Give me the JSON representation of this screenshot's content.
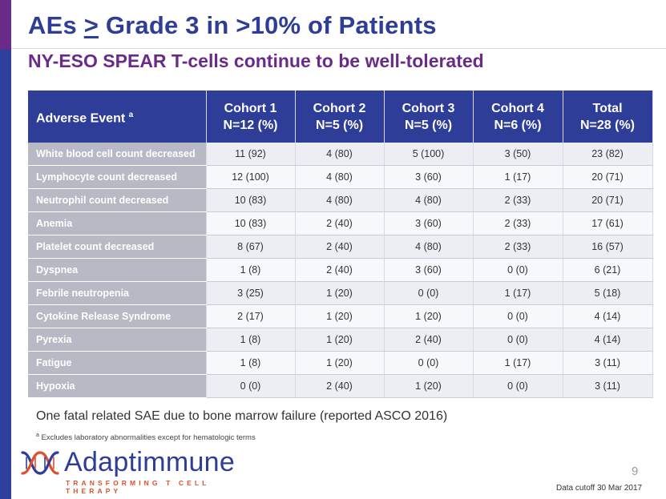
{
  "slide": {
    "title_prefix": "AEs ",
    "title_ge": ">",
    "title_suffix": " Grade 3 in >10% of Patients",
    "subtitle": "NY-ESO SPEAR T-cells continue to be well-tolerated",
    "page_number": "9",
    "data_cutoff": "Data cutoff 30 Mar 2017",
    "note": "One fatal related SAE due to bone marrow failure (reported ASCO 2016)",
    "footnote_marker": "a",
    "footnote": " Excludes laboratory abnormalities except for hematologic terms",
    "colors": {
      "primary": "#2e3d98",
      "accent": "#6a2b88",
      "logo_orange": "#e0502b",
      "row_label_bg": "#b7b9c4"
    }
  },
  "table": {
    "header": {
      "event_label": "Adverse Event ",
      "event_sup": "a",
      "columns": [
        {
          "line1": "Cohort 1",
          "line2": "N=12 (%)"
        },
        {
          "line1": "Cohort 2",
          "line2": "N=5 (%)"
        },
        {
          "line1": "Cohort 3",
          "line2": "N=5 (%)"
        },
        {
          "line1": "Cohort 4",
          "line2": "N=6 (%)"
        },
        {
          "line1": "Total",
          "line2": "N=28 (%)"
        }
      ]
    },
    "rows": [
      {
        "event": "White blood cell count decreased",
        "values": [
          "11 (92)",
          "4 (80)",
          "5 (100)",
          "3 (50)",
          "23 (82)"
        ]
      },
      {
        "event": "Lymphocyte count decreased",
        "values": [
          "12 (100)",
          "4 (80)",
          "3 (60)",
          "1 (17)",
          "20 (71)"
        ]
      },
      {
        "event": "Neutrophil count decreased",
        "values": [
          "10 (83)",
          "4 (80)",
          "4 (80)",
          "2 (33)",
          "20 (71)"
        ]
      },
      {
        "event": "Anemia",
        "values": [
          "10 (83)",
          "2 (40)",
          "3 (60)",
          "2 (33)",
          "17 (61)"
        ]
      },
      {
        "event": "Platelet count decreased",
        "values": [
          "8 (67)",
          "2 (40)",
          "4 (80)",
          "2 (33)",
          "16 (57)"
        ]
      },
      {
        "event": "Dyspnea",
        "values": [
          "1 (8)",
          "2 (40)",
          "3 (60)",
          "0 (0)",
          "6 (21)"
        ]
      },
      {
        "event": "Febrile neutropenia",
        "values": [
          "3 (25)",
          "1 (20)",
          "0 (0)",
          "1 (17)",
          "5 (18)"
        ]
      },
      {
        "event": "Cytokine Release Syndrome",
        "values": [
          "2 (17)",
          "1 (20)",
          "1 (20)",
          "0 (0)",
          "4 (14)"
        ]
      },
      {
        "event": "Pyrexia",
        "values": [
          "1 (8)",
          "1 (20)",
          "2 (40)",
          "0 (0)",
          "4 (14)"
        ]
      },
      {
        "event": "Fatigue",
        "values": [
          "1 (8)",
          "1 (20)",
          "0 (0)",
          "1 (17)",
          "3 (11)"
        ]
      },
      {
        "event": "Hypoxia",
        "values": [
          "0 (0)",
          "2 (40)",
          "1 (20)",
          "0 (0)",
          "3 (11)"
        ]
      }
    ]
  },
  "logo": {
    "wordmark": "Adaptimmune",
    "tagline": "TRANSFORMING T CELL THERAPY",
    "icon": "dna-helix-icon"
  }
}
